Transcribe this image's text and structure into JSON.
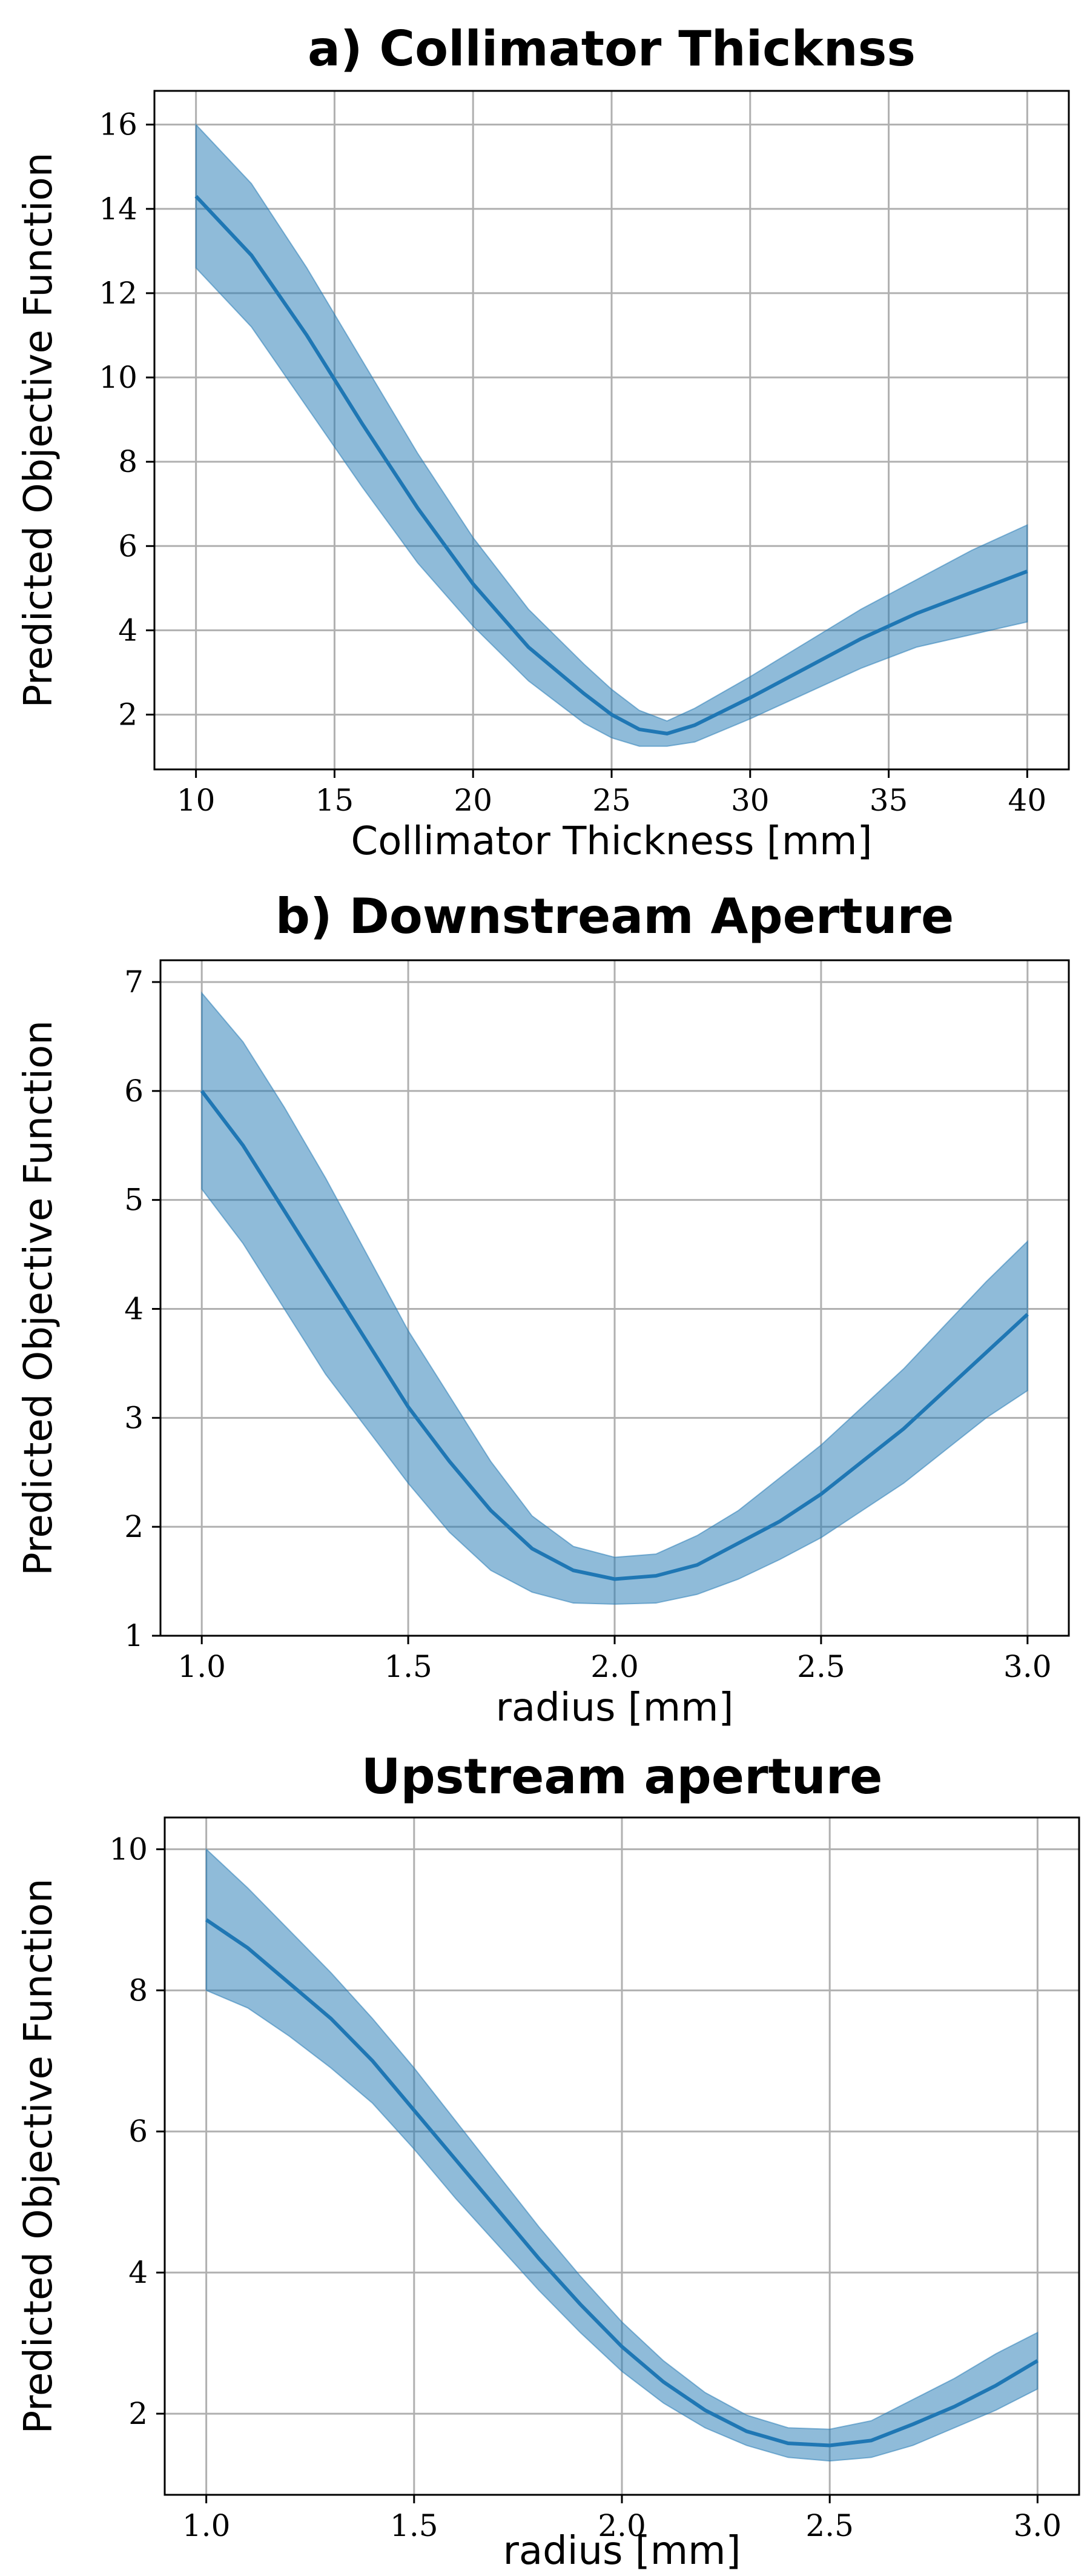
{
  "chart_data": [
    {
      "type": "line",
      "title": "a) Collimator Thicknss",
      "xlabel": "Collimator Thickness [mm]",
      "ylabel": "Predicted Objective Function",
      "xlim": [
        8.5,
        41.5
      ],
      "ylim": [
        0.7,
        16.8
      ],
      "xticks": [
        10,
        15,
        20,
        25,
        30,
        35,
        40
      ],
      "yticks": [
        2,
        4,
        6,
        8,
        10,
        12,
        14,
        16
      ],
      "grid": true,
      "series": [
        {
          "x": [
            10,
            12,
            14,
            16,
            18,
            20,
            22,
            24,
            25,
            26,
            27,
            28,
            30,
            32,
            34,
            36,
            38,
            40
          ],
          "mean": [
            14.3,
            12.9,
            11.0,
            8.9,
            6.9,
            5.1,
            3.6,
            2.5,
            2.0,
            1.65,
            1.55,
            1.75,
            2.4,
            3.1,
            3.8,
            4.4,
            4.9,
            5.4
          ],
          "upper": [
            16.0,
            14.6,
            12.6,
            10.4,
            8.2,
            6.2,
            4.5,
            3.2,
            2.6,
            2.1,
            1.85,
            2.15,
            2.9,
            3.7,
            4.5,
            5.2,
            5.9,
            6.5
          ],
          "lower": [
            12.6,
            11.2,
            9.3,
            7.4,
            5.6,
            4.1,
            2.8,
            1.8,
            1.45,
            1.25,
            1.25,
            1.35,
            1.9,
            2.5,
            3.1,
            3.6,
            3.9,
            4.2
          ]
        }
      ]
    },
    {
      "type": "line",
      "title": "b) Downstream Aperture",
      "xlabel": "radius [mm]",
      "ylabel": "Predicted Objective Function",
      "xlim": [
        0.9,
        3.1
      ],
      "ylim": [
        1.0,
        7.2
      ],
      "xticks": [
        1.0,
        1.5,
        2.0,
        2.5,
        3.0
      ],
      "yticks": [
        1,
        2,
        3,
        4,
        5,
        6,
        7
      ],
      "grid": true,
      "series": [
        {
          "x": [
            1.0,
            1.1,
            1.2,
            1.3,
            1.4,
            1.5,
            1.6,
            1.7,
            1.8,
            1.9,
            2.0,
            2.1,
            2.2,
            2.3,
            2.4,
            2.5,
            2.6,
            2.7,
            2.8,
            2.9,
            3.0
          ],
          "mean": [
            6.0,
            5.5,
            4.9,
            4.3,
            3.7,
            3.1,
            2.6,
            2.15,
            1.8,
            1.6,
            1.52,
            1.55,
            1.65,
            1.85,
            2.05,
            2.3,
            2.6,
            2.9,
            3.25,
            3.6,
            3.95
          ],
          "upper": [
            6.9,
            6.45,
            5.85,
            5.2,
            4.5,
            3.8,
            3.2,
            2.6,
            2.1,
            1.82,
            1.72,
            1.75,
            1.92,
            2.15,
            2.45,
            2.75,
            3.1,
            3.45,
            3.85,
            4.25,
            4.62
          ],
          "lower": [
            5.1,
            4.6,
            4.0,
            3.4,
            2.9,
            2.4,
            1.95,
            1.6,
            1.4,
            1.3,
            1.29,
            1.3,
            1.38,
            1.52,
            1.7,
            1.9,
            2.15,
            2.4,
            2.7,
            3.0,
            3.25
          ]
        }
      ]
    },
    {
      "type": "line",
      "title": "Upstream aperture",
      "xlabel": "radius [mm]",
      "ylabel": "Predicted Objective Function",
      "xlim": [
        0.9,
        3.1
      ],
      "ylim": [
        0.85,
        10.45
      ],
      "xticks": [
        1.0,
        1.5,
        2.0,
        2.5,
        3.0
      ],
      "yticks": [
        2,
        4,
        6,
        8,
        10
      ],
      "grid": true,
      "series": [
        {
          "x": [
            1.0,
            1.1,
            1.2,
            1.3,
            1.4,
            1.5,
            1.6,
            1.7,
            1.8,
            1.9,
            2.0,
            2.1,
            2.2,
            2.3,
            2.4,
            2.5,
            2.6,
            2.7,
            2.8,
            2.9,
            3.0
          ],
          "mean": [
            9.0,
            8.6,
            8.1,
            7.6,
            7.0,
            6.3,
            5.6,
            4.9,
            4.2,
            3.55,
            2.95,
            2.45,
            2.05,
            1.75,
            1.58,
            1.55,
            1.62,
            1.85,
            2.1,
            2.4,
            2.75
          ],
          "upper": [
            10.0,
            9.45,
            8.85,
            8.25,
            7.6,
            6.9,
            6.15,
            5.4,
            4.65,
            3.95,
            3.3,
            2.75,
            2.3,
            1.98,
            1.8,
            1.78,
            1.9,
            2.2,
            2.5,
            2.85,
            3.15
          ],
          "lower": [
            8.0,
            7.75,
            7.35,
            6.9,
            6.4,
            5.75,
            5.05,
            4.4,
            3.75,
            3.15,
            2.6,
            2.15,
            1.8,
            1.55,
            1.38,
            1.33,
            1.38,
            1.55,
            1.8,
            2.05,
            2.35
          ]
        }
      ]
    }
  ]
}
